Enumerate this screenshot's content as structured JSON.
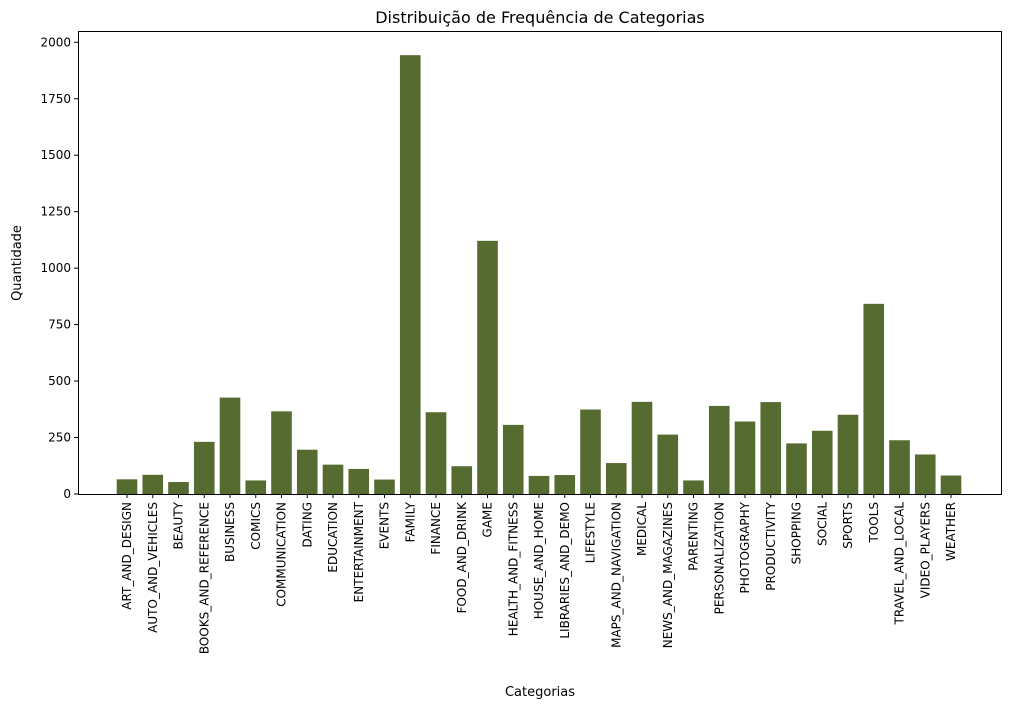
{
  "chart_data": {
    "type": "bar",
    "title": "Distribuição de Frequência de Categorias",
    "xlabel": "Categorias",
    "ylabel": "Quantidade",
    "ylim": [
      0,
      2050
    ],
    "yticks": [
      0,
      250,
      500,
      750,
      1000,
      1250,
      1500,
      1750,
      2000
    ],
    "grid": false,
    "bar_color": "#556b2f",
    "categories": [
      "ART_AND_DESIGN",
      "AUTO_AND_VEHICLES",
      "BEAUTY",
      "BOOKS_AND_REFERENCE",
      "BUSINESS",
      "COMICS",
      "COMMUNICATION",
      "DATING",
      "EDUCATION",
      "ENTERTAINMENT",
      "EVENTS",
      "FAMILY",
      "FINANCE",
      "FOOD_AND_DRINK",
      "GAME",
      "HEALTH_AND_FITNESS",
      "HOUSE_AND_HOME",
      "LIBRARIES_AND_DEMO",
      "LIFESTYLE",
      "MAPS_AND_NAVIGATION",
      "MEDICAL",
      "NEWS_AND_MAGAZINES",
      "PARENTING",
      "PERSONALIZATION",
      "PHOTOGRAPHY",
      "PRODUCTIVITY",
      "SHOPPING",
      "SOCIAL",
      "SPORTS",
      "TOOLS",
      "TRAVEL_AND_LOCAL",
      "VIDEO_PLAYERS",
      "WEATHER"
    ],
    "values": [
      65,
      85,
      53,
      231,
      427,
      60,
      366,
      196,
      130,
      111,
      64,
      1943,
      362,
      123,
      1121,
      306,
      80,
      84,
      374,
      137,
      408,
      263,
      60,
      390,
      321,
      407,
      224,
      280,
      351,
      842,
      238,
      175,
      82
    ]
  }
}
